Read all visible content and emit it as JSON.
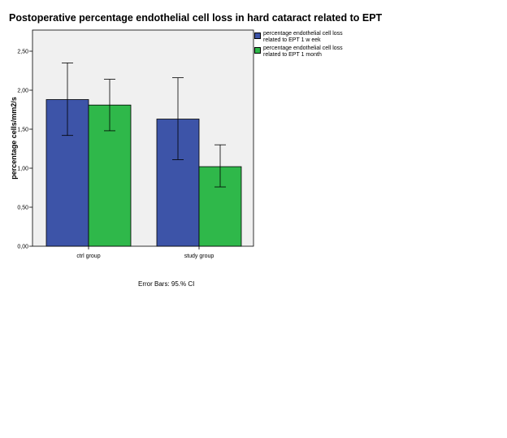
{
  "chart_data": {
    "type": "bar",
    "title": "Postoperative percentage endothelial cell loss in hard cataract related to EPT",
    "xlabel": "",
    "ylabel": "percentage cells/mm2/s",
    "categories": [
      "ctrl group",
      "study group"
    ],
    "ylim": [
      0,
      2.7
    ],
    "yticks": [
      "0,00",
      "0,50",
      "1,00",
      "1,50",
      "2,00",
      "2,50"
    ],
    "ytick_values": [
      0,
      0.5,
      1.0,
      1.5,
      2.0,
      2.5
    ],
    "series": [
      {
        "name": "percentage endothelial cell loss related to EPT 1 w eek",
        "color": "#3d54a8",
        "values": [
          1.88,
          1.63
        ],
        "ci_low": [
          1.42,
          1.11
        ],
        "ci_high": [
          2.35,
          2.16
        ]
      },
      {
        "name": "percentage endothelial cell loss related to EPT 1 month",
        "color": "#2fb84a",
        "values": [
          1.81,
          1.02
        ],
        "ci_low": [
          1.48,
          0.76
        ],
        "ci_high": [
          2.14,
          1.3
        ]
      }
    ],
    "grid": false,
    "legend_position": "right-top",
    "plot_background": "#f0f0f0",
    "footnote": "Error Bars: 95.% CI"
  }
}
